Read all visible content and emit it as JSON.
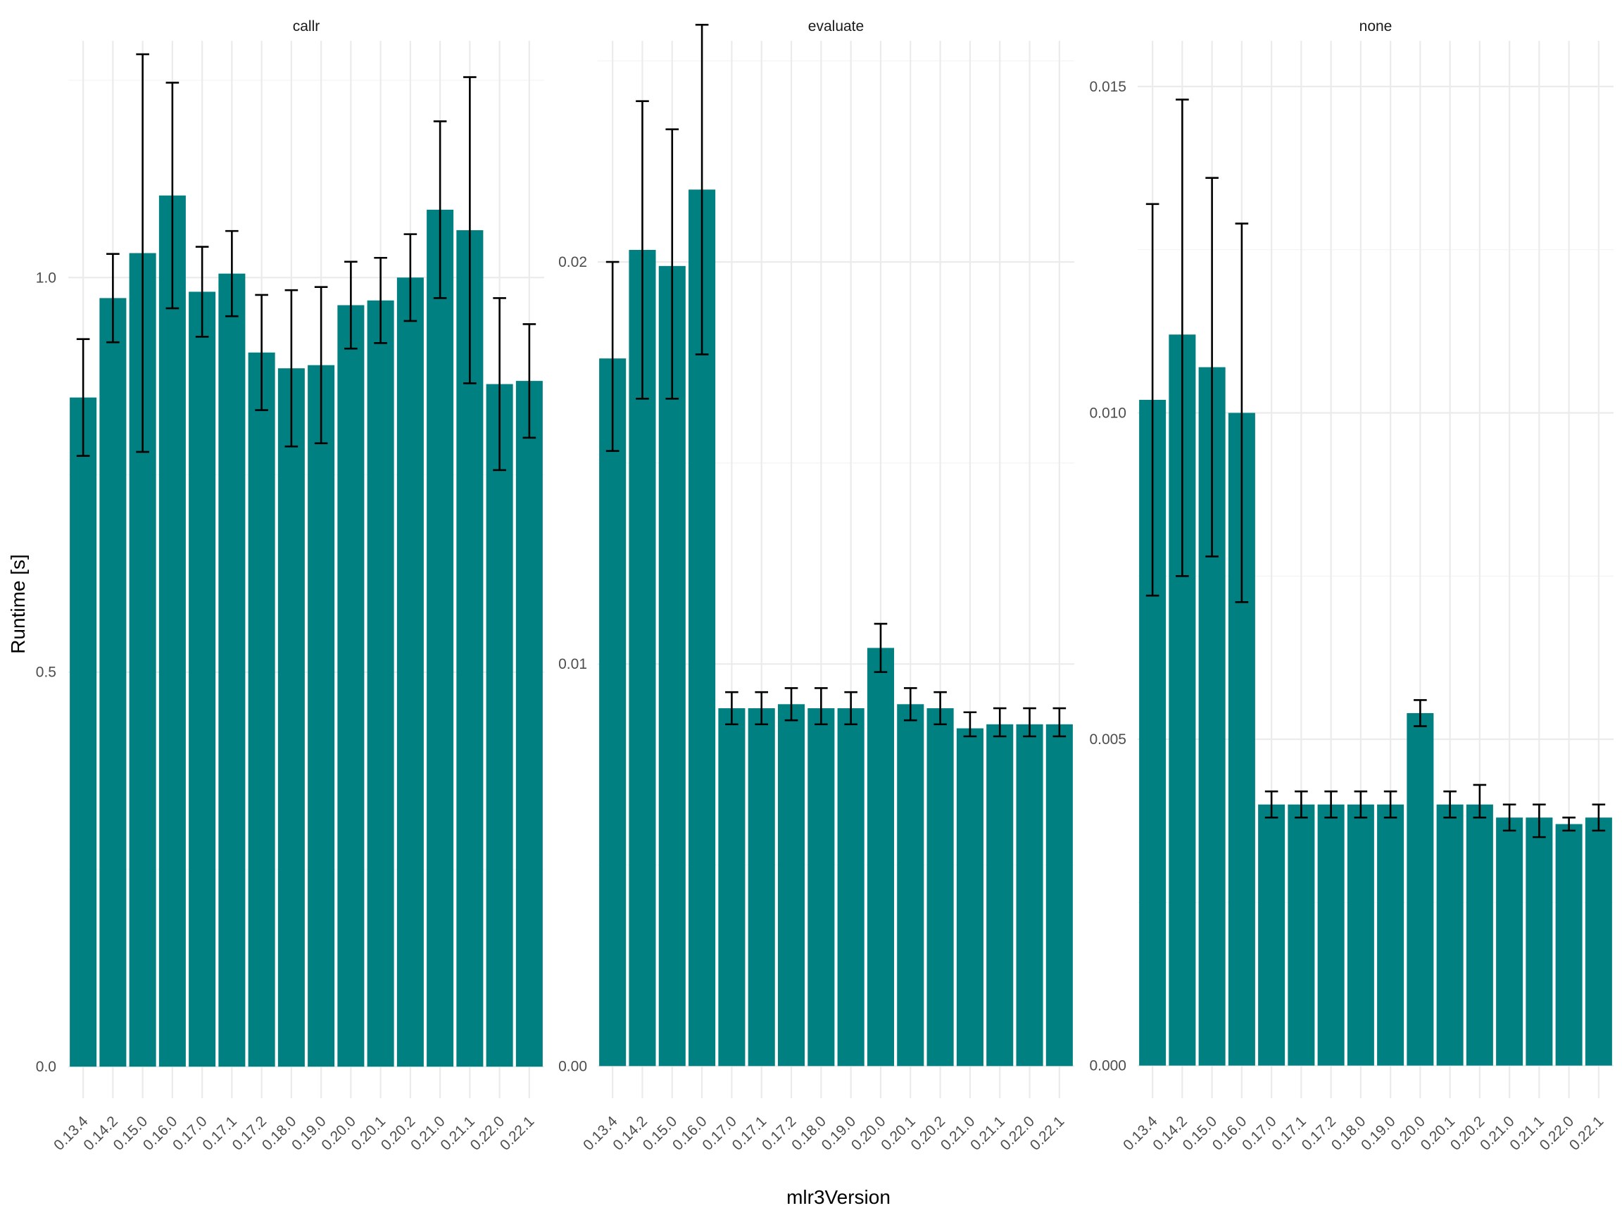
{
  "chart_data": {
    "type": "bar",
    "xlabel": "mlr3Version",
    "ylabel": "Runtime [s]",
    "grid": true,
    "bar_color": "#008080",
    "errorbar_color": "#000000",
    "categories": [
      "0.13.4",
      "0.14.2",
      "0.15.0",
      "0.16.0",
      "0.17.0",
      "0.17.1",
      "0.17.2",
      "0.18.0",
      "0.19.0",
      "0.20.0",
      "0.20.1",
      "0.20.2",
      "0.21.0",
      "0.21.1",
      "0.22.0",
      "0.22.1"
    ],
    "panels": [
      {
        "title": "callr",
        "ylim": [
          -0.04,
          1.3
        ],
        "yticks": [
          0.0,
          0.5,
          1.0
        ],
        "ytick_labels": [
          "0.0",
          "0.5",
          "1.0"
        ],
        "minor_yticks": [
          0.25,
          0.75,
          1.25
        ],
        "values": [
          0.848,
          0.974,
          1.031,
          1.104,
          0.982,
          1.005,
          0.905,
          0.885,
          0.889,
          0.965,
          0.971,
          1.0,
          1.086,
          1.06,
          0.865,
          0.869
        ],
        "err_low": [
          0.774,
          0.918,
          0.779,
          0.961,
          0.925,
          0.951,
          0.832,
          0.786,
          0.79,
          0.91,
          0.917,
          0.945,
          0.974,
          0.866,
          0.756,
          0.797
        ],
        "err_high": [
          0.922,
          1.03,
          1.283,
          1.247,
          1.039,
          1.059,
          0.978,
          0.984,
          0.988,
          1.02,
          1.025,
          1.055,
          1.198,
          1.254,
          0.974,
          0.941
        ]
      },
      {
        "title": "evaluate",
        "ylim": [
          -0.0008,
          0.0255
        ],
        "yticks": [
          0.0,
          0.01,
          0.02
        ],
        "ytick_labels": [
          "0.00",
          "0.01",
          "0.02"
        ],
        "minor_yticks": [
          0.005,
          0.015,
          0.025
        ],
        "values": [
          0.0176,
          0.0203,
          0.0199,
          0.0218,
          0.0089,
          0.0089,
          0.009,
          0.0089,
          0.0089,
          0.0104,
          0.009,
          0.0089,
          0.0084,
          0.0085,
          0.0085,
          0.0085
        ],
        "err_low": [
          0.0153,
          0.0166,
          0.0166,
          0.0177,
          0.0085,
          0.0085,
          0.0086,
          0.0085,
          0.0085,
          0.0098,
          0.0086,
          0.0085,
          0.0082,
          0.0082,
          0.0082,
          0.0082
        ],
        "err_high": [
          0.02,
          0.024,
          0.0233,
          0.0259,
          0.0093,
          0.0093,
          0.0094,
          0.0094,
          0.0093,
          0.011,
          0.0094,
          0.0093,
          0.0088,
          0.0089,
          0.0089,
          0.0089
        ]
      },
      {
        "title": "none",
        "ylim": [
          -0.0005,
          0.0157
        ],
        "yticks": [
          0.0,
          0.005,
          0.01,
          0.015
        ],
        "ytick_labels": [
          "0.000",
          "0.005",
          "0.010",
          "0.015"
        ],
        "minor_yticks": [
          0.0025,
          0.0075,
          0.0125
        ],
        "values": [
          0.0102,
          0.0112,
          0.0107,
          0.01,
          0.004,
          0.004,
          0.004,
          0.004,
          0.004,
          0.0054,
          0.004,
          0.004,
          0.0038,
          0.0038,
          0.0037,
          0.0038
        ],
        "err_low": [
          0.0072,
          0.0075,
          0.0078,
          0.0071,
          0.0038,
          0.0038,
          0.0038,
          0.0038,
          0.0038,
          0.0052,
          0.0038,
          0.0038,
          0.0036,
          0.0035,
          0.0036,
          0.0036
        ],
        "err_high": [
          0.0132,
          0.0148,
          0.0136,
          0.0129,
          0.0042,
          0.0042,
          0.0042,
          0.0042,
          0.0042,
          0.0056,
          0.0042,
          0.0043,
          0.004,
          0.004,
          0.0038,
          0.004
        ]
      }
    ]
  }
}
